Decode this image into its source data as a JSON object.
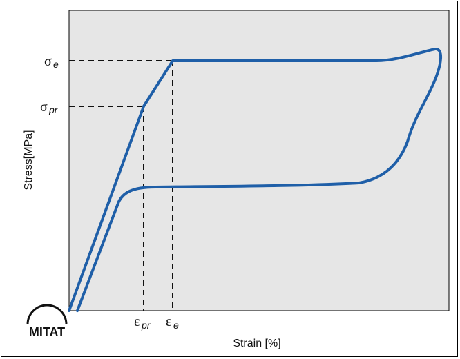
{
  "chart_data": {
    "type": "line",
    "title": "",
    "xlabel": "Strain [%]",
    "ylabel": "Stress[MPa]",
    "grid": false,
    "legend": "none",
    "series_color": "#1f5fa8",
    "plot_bg": "#e6e6e6",
    "annotations": {
      "y_marks": [
        {
          "symbol": "σ",
          "subscript": "e"
        },
        {
          "symbol": "σ",
          "subscript": "pr"
        }
      ],
      "x_marks": [
        {
          "symbol": "ε",
          "subscript": "pr"
        },
        {
          "symbol": "ε",
          "subscript": "e"
        }
      ]
    }
  },
  "logo": {
    "text": "MITAT"
  }
}
